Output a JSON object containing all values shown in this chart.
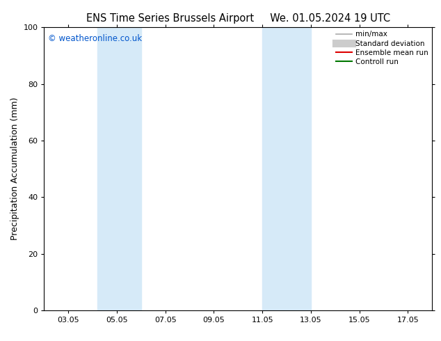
{
  "title_left": "ENS Time Series Brussels Airport",
  "title_right": "We. 01.05.2024 19 UTC",
  "ylabel": "Precipitation Accumulation (mm)",
  "ylim": [
    0,
    100
  ],
  "yticks": [
    0,
    20,
    40,
    60,
    80,
    100
  ],
  "xlim": [
    2.0,
    18.0
  ],
  "xtick_positions": [
    3,
    5,
    7,
    9,
    11,
    13,
    15,
    17
  ],
  "xtick_labels": [
    "03.05",
    "05.05",
    "07.05",
    "09.05",
    "11.05",
    "13.05",
    "15.05",
    "17.05"
  ],
  "shaded_bands": [
    {
      "xmin": 4.2,
      "xmax": 6.0,
      "color": "#d6eaf8"
    },
    {
      "xmin": 11.0,
      "xmax": 13.0,
      "color": "#d6eaf8"
    }
  ],
  "watermark_text": "© weatheronline.co.uk",
  "watermark_color": "#0055cc",
  "watermark_fontsize": 8.5,
  "legend_items": [
    {
      "label": "min/max",
      "color": "#aaaaaa",
      "lw": 1.2,
      "type": "line"
    },
    {
      "label": "Standard deviation",
      "color": "#cccccc",
      "lw": 8,
      "type": "line"
    },
    {
      "label": "Ensemble mean run",
      "color": "#dd0000",
      "lw": 1.5,
      "type": "line"
    },
    {
      "label": "Controll run",
      "color": "#007700",
      "lw": 1.5,
      "type": "line"
    }
  ],
  "background_color": "#ffffff",
  "plot_bg_color": "#ffffff",
  "title_fontsize": 10.5,
  "tick_fontsize": 8,
  "ylabel_fontsize": 9,
  "legend_fontsize": 7.5
}
